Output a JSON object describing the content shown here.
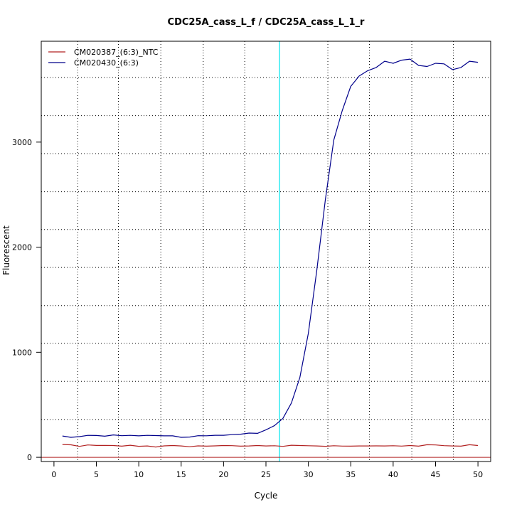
{
  "chart_data": {
    "type": "line",
    "title": "CDC25A_cass_L_f / CDC25A_cass_L_1_r",
    "xlabel": "Cycle",
    "ylabel": "Fluorescent",
    "xlim": [
      -1.5,
      51.5
    ],
    "ylim": [
      -40,
      3960
    ],
    "xticks": [
      0,
      5,
      10,
      15,
      20,
      25,
      30,
      35,
      40,
      45,
      50
    ],
    "yticks": [
      0,
      1000,
      2000,
      3000
    ],
    "grid": "dotted",
    "vertical_grid_cycles": [
      2.8,
      7.6,
      12.6,
      17.6,
      22.5,
      32.3,
      37.2,
      42.2,
      47.1
    ],
    "horizontal_grid_values": [
      360,
      723,
      1084,
      1444,
      1807,
      2168,
      2528,
      2891,
      3252,
      3615
    ],
    "threshold_cycle": 26.6,
    "baseline_y": 0,
    "legend_position": "top-left",
    "colors": {
      "ntc": "#b22222",
      "sample": "#00008b",
      "threshold": "#00e5ee",
      "baseline": "#b22222",
      "grid": "#000000"
    },
    "series": [
      {
        "name": "CM020387_(6:3)_NTC",
        "color": "#b22222",
        "x": [
          1,
          2,
          3,
          4,
          5,
          6,
          7,
          8,
          9,
          10,
          11,
          12,
          13,
          14,
          15,
          16,
          17,
          18,
          19,
          20,
          21,
          22,
          23,
          24,
          25,
          26,
          27,
          28,
          29,
          30,
          31,
          32,
          33,
          34,
          35,
          36,
          37,
          38,
          39,
          40,
          41,
          42,
          43,
          44,
          45,
          46,
          47,
          48,
          49,
          50
        ],
        "values": [
          122,
          119,
          104,
          118,
          113,
          113,
          112,
          106,
          115,
          105,
          108,
          98,
          109,
          112,
          108,
          101,
          109,
          106,
          109,
          112,
          111,
          106,
          108,
          112,
          108,
          110,
          104,
          115,
          112,
          110,
          108,
          105,
          110,
          107,
          106,
          108,
          108,
          109,
          108,
          110,
          107,
          112,
          106,
          120,
          118,
          111,
          108,
          106,
          120,
          112
        ]
      },
      {
        "name": "CM020430_(6:3)",
        "color": "#00008b",
        "x": [
          1,
          2,
          3,
          4,
          5,
          6,
          7,
          8,
          9,
          10,
          11,
          12,
          13,
          14,
          15,
          16,
          17,
          18,
          19,
          20,
          21,
          22,
          23,
          24,
          25,
          26,
          27,
          28,
          29,
          30,
          31,
          32,
          33,
          34,
          35,
          36,
          37,
          38,
          39,
          40,
          41,
          42,
          43,
          44,
          45,
          46,
          47,
          48,
          49,
          50
        ],
        "values": [
          203,
          190,
          197,
          209,
          208,
          201,
          213,
          206,
          209,
          204,
          209,
          207,
          204,
          204,
          190,
          193,
          206,
          205,
          210,
          210,
          216,
          220,
          231,
          228,
          262,
          301,
          370,
          517,
          760,
          1180,
          1780,
          2450,
          3020,
          3300,
          3530,
          3630,
          3680,
          3710,
          3770,
          3750,
          3780,
          3790,
          3730,
          3720,
          3750,
          3745,
          3690,
          3710,
          3770,
          3760
        ]
      }
    ]
  }
}
